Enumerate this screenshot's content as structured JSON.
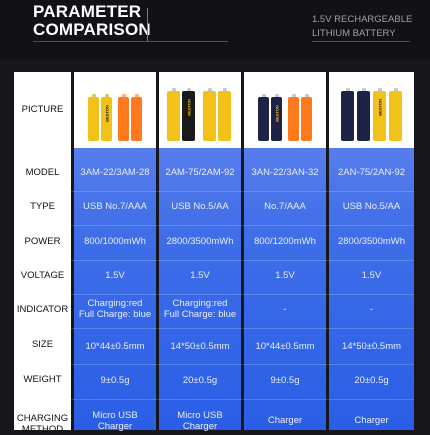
{
  "header": {
    "title_line1": "PARAMETER",
    "title_line2": "COMPARISON",
    "subtitle_line1": "1.5V RECHARGEABLE",
    "subtitle_line2": "LITHIUM BATTERY"
  },
  "rows": {
    "picture": "PICTURE",
    "model": "MODEL",
    "type": "TYPE",
    "power": "POWER",
    "voltage": "VOLTAGE",
    "indicator": "INDICATOR",
    "size": "SIZE",
    "weight": "WEIGHT",
    "charging_line1": "CHARGING",
    "charging_line2": "METHOD"
  },
  "columns": [
    {
      "model": "3AM-22/3AM-28",
      "type": "USB No.7/AAA",
      "power": "800/1000mWh",
      "voltage": "1.5V",
      "indicator_line1": "Charging:red",
      "indicator_line2": "Full Charge: blue",
      "size": "10*44±0.5mm",
      "weight": "9±0.5g",
      "charging_line1": "Micro USB",
      "charging_line2": "Charger",
      "battery_print": "BESTON"
    },
    {
      "model": "2AM-75/2AM-92",
      "type": "USB No.5/AA",
      "power": "2800/3500mWh",
      "voltage": "1.5V",
      "indicator_line1": "Charging:red",
      "indicator_line2": "Full Charge: blue",
      "size": "14*50±0.5mm",
      "weight": "20±0.5g",
      "charging_line1": "Micro USB",
      "charging_line2": "Charger",
      "battery_print": "BESTON"
    },
    {
      "model": "3AN-22/3AN-32",
      "type": "No.7/AAA",
      "power": "800/1200mWh",
      "voltage": "1.5V",
      "indicator_line1": "-",
      "indicator_line2": "",
      "size": "10*44±0.5mm",
      "weight": "9±0.5g",
      "charging_line1": "Charger",
      "charging_line2": "",
      "battery_print": "BESTON"
    },
    {
      "model": "2AN-75/2AN-92",
      "type": "USB No.5/AA",
      "power": "2800/3500mWh",
      "voltage": "1.5V",
      "indicator_line1": "-",
      "indicator_line2": "",
      "size": "14*50±0.5mm",
      "weight": "20±0.5g",
      "charging_line1": "Charger",
      "charging_line2": "",
      "battery_print": "BESTON"
    }
  ],
  "colors": {
    "yellow": "#f2c21a",
    "orange": "#ff7a1c",
    "navy": "#1d2247",
    "blue": "#3f6ee8"
  }
}
